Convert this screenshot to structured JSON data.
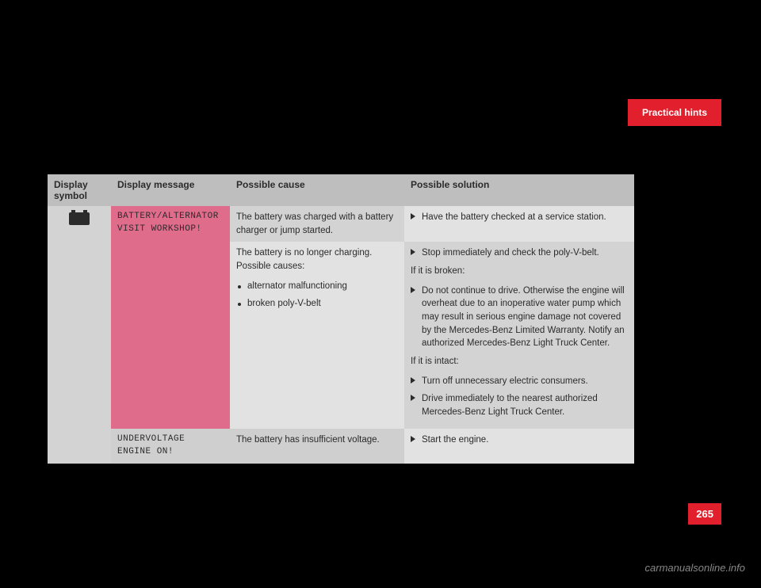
{
  "tab_title": "Practical hints",
  "page_number": "265",
  "watermark": "carmanualsonline.info",
  "headers": {
    "c1": "Display symbol",
    "c2": "Display message",
    "c3": "Possible cause",
    "c4": "Possible solution"
  },
  "row1": {
    "message_line1": "BATTERY/ALTERNATOR",
    "message_line2": "VISIT WORKSHOP!",
    "cause_a": "The battery was charged with a battery charger or jump started.",
    "cause_b_intro": "The battery is no longer charging. Possible causes:",
    "cause_b_item1": "alternator malfunctioning",
    "cause_b_item2": "broken poly-V-belt",
    "sol_a": "Have the battery checked at a service station.",
    "sol_b1": "Stop immediately and check the poly-V-belt.",
    "sol_b_broken_label": "If it is broken:",
    "sol_b2": "Do not continue to drive. Otherwise the engine will overheat due to an inoperative water pump which may result in serious engine damage not covered by the Mercedes-Benz Limited Warranty. Notify an authorized Mercedes-Benz Light Truck Center.",
    "sol_b_intact_label": "If it is intact:",
    "sol_b3": "Turn off unnecessary electric consumers.",
    "sol_b4": "Drive immediately to the nearest authorized Mercedes-Benz Light Truck Center."
  },
  "row2": {
    "message_line1": "UNDERVOLTAGE",
    "message_line2": "ENGINE ON!",
    "cause": "The battery has insufficient voltage.",
    "sol": "Start the engine."
  }
}
